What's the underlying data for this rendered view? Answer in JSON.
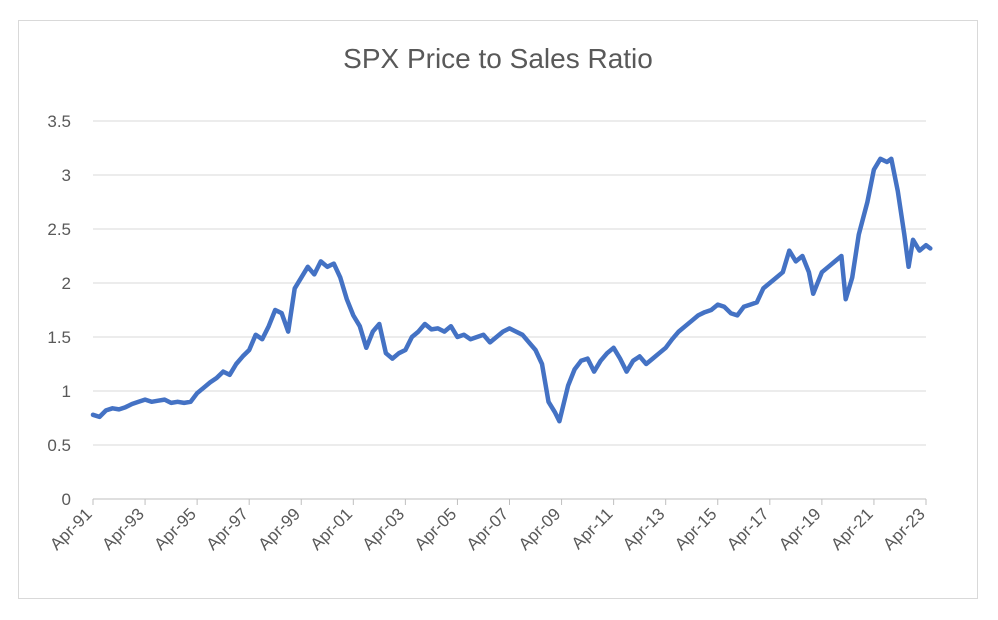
{
  "chart_data": {
    "type": "line",
    "title": "SPX Price to Sales Ratio",
    "xlabel": "",
    "ylabel": "",
    "ylim": [
      0,
      3.5
    ],
    "yticks": [
      "0",
      "0.5",
      "1",
      "1.5",
      "2",
      "2.5",
      "3",
      "3.5"
    ],
    "xticks": [
      "Apr-91",
      "Apr-93",
      "Apr-95",
      "Apr-97",
      "Apr-99",
      "Apr-01",
      "Apr-03",
      "Apr-05",
      "Apr-07",
      "Apr-09",
      "Apr-11",
      "Apr-13",
      "Apr-15",
      "Apr-17",
      "Apr-19",
      "Apr-21",
      "Apr-23"
    ],
    "grid": true,
    "legend": "none",
    "series": [
      {
        "color": "#4472c4",
        "x": [
          "1991-04",
          "1991-07",
          "1991-10",
          "1992-01",
          "1992-04",
          "1992-07",
          "1992-10",
          "1993-01",
          "1993-04",
          "1993-07",
          "1993-10",
          "1994-01",
          "1994-04",
          "1994-07",
          "1994-10",
          "1995-01",
          "1995-04",
          "1995-07",
          "1995-10",
          "1996-01",
          "1996-04",
          "1996-07",
          "1996-10",
          "1997-01",
          "1997-04",
          "1997-07",
          "1997-10",
          "1998-01",
          "1998-04",
          "1998-07",
          "1998-10",
          "1999-01",
          "1999-04",
          "1999-07",
          "1999-10",
          "2000-01",
          "2000-04",
          "2000-07",
          "2000-10",
          "2001-01",
          "2001-04",
          "2001-07",
          "2001-10",
          "2002-01",
          "2002-04",
          "2002-07",
          "2002-10",
          "2003-01",
          "2003-04",
          "2003-07",
          "2003-10",
          "2004-01",
          "2004-04",
          "2004-07",
          "2004-10",
          "2005-01",
          "2005-04",
          "2005-07",
          "2005-10",
          "2006-01",
          "2006-04",
          "2006-07",
          "2006-10",
          "2007-01",
          "2007-04",
          "2007-07",
          "2007-10",
          "2008-01",
          "2008-04",
          "2008-07",
          "2008-10",
          "2009-01",
          "2009-03",
          "2009-07",
          "2009-10",
          "2010-01",
          "2010-04",
          "2010-07",
          "2010-10",
          "2011-01",
          "2011-04",
          "2011-07",
          "2011-10",
          "2012-01",
          "2012-04",
          "2012-07",
          "2012-10",
          "2013-01",
          "2013-04",
          "2013-07",
          "2013-10",
          "2014-01",
          "2014-04",
          "2014-07",
          "2014-10",
          "2015-01",
          "2015-04",
          "2015-07",
          "2015-10",
          "2016-01",
          "2016-04",
          "2016-07",
          "2016-10",
          "2017-01",
          "2017-04",
          "2017-07",
          "2017-10",
          "2018-01",
          "2018-04",
          "2018-07",
          "2018-10",
          "2018-12",
          "2019-04",
          "2019-07",
          "2019-10",
          "2020-01",
          "2020-03",
          "2020-06",
          "2020-09",
          "2021-01",
          "2021-04",
          "2021-07",
          "2021-10",
          "2021-12",
          "2022-03",
          "2022-06",
          "2022-08",
          "2022-10",
          "2023-01",
          "2023-04",
          "2023-06"
        ],
        "y": [
          0.78,
          0.76,
          0.82,
          0.84,
          0.83,
          0.85,
          0.88,
          0.9,
          0.92,
          0.9,
          0.91,
          0.92,
          0.89,
          0.9,
          0.89,
          0.9,
          0.98,
          1.03,
          1.08,
          1.12,
          1.18,
          1.15,
          1.25,
          1.32,
          1.38,
          1.52,
          1.48,
          1.6,
          1.75,
          1.72,
          1.55,
          1.95,
          2.05,
          2.15,
          2.08,
          2.2,
          2.15,
          2.18,
          2.05,
          1.85,
          1.7,
          1.6,
          1.4,
          1.55,
          1.62,
          1.35,
          1.3,
          1.35,
          1.38,
          1.5,
          1.55,
          1.62,
          1.57,
          1.58,
          1.55,
          1.6,
          1.5,
          1.52,
          1.48,
          1.5,
          1.52,
          1.45,
          1.5,
          1.55,
          1.58,
          1.55,
          1.52,
          1.45,
          1.38,
          1.25,
          0.9,
          0.8,
          0.72,
          1.05,
          1.2,
          1.28,
          1.3,
          1.18,
          1.28,
          1.35,
          1.4,
          1.3,
          1.18,
          1.28,
          1.32,
          1.25,
          1.3,
          1.35,
          1.4,
          1.48,
          1.55,
          1.6,
          1.65,
          1.7,
          1.73,
          1.75,
          1.8,
          1.78,
          1.72,
          1.7,
          1.78,
          1.8,
          1.82,
          1.95,
          2.0,
          2.05,
          2.1,
          2.3,
          2.2,
          2.25,
          2.1,
          1.9,
          2.1,
          2.15,
          2.2,
          2.25,
          1.85,
          2.05,
          2.45,
          2.75,
          3.05,
          3.15,
          3.12,
          3.15,
          2.85,
          2.45,
          2.15,
          2.4,
          2.3,
          2.35,
          2.32
        ]
      }
    ]
  }
}
